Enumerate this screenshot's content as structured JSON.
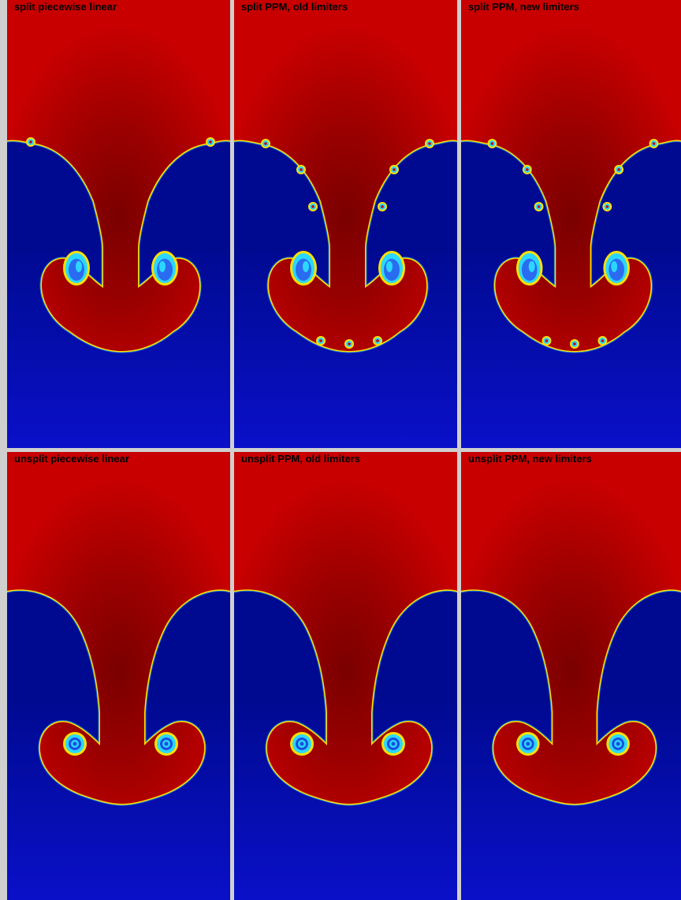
{
  "panels": [
    {
      "label": "split piecewise linear",
      "variant": "split-plm"
    },
    {
      "label": "split PPM, old limiters",
      "variant": "split-ppm-old"
    },
    {
      "label": "split PPM, new limiters",
      "variant": "split-ppm-new"
    },
    {
      "label": "unsplit piecewise linear",
      "variant": "unsplit"
    },
    {
      "label": "unsplit PPM, old limiters",
      "variant": "unsplit"
    },
    {
      "label": "unsplit PPM, new limiters",
      "variant": "unsplit"
    }
  ],
  "colors": {
    "heavy_top": "#c80000",
    "heavy_core": "#7a0000",
    "light_fluid": "#0a10c8",
    "light_fluid_dark": "#000a90",
    "interface_yellow": "#ffe000",
    "interface_cyan": "#2bd7ff",
    "divider": "#d4d4d4"
  }
}
